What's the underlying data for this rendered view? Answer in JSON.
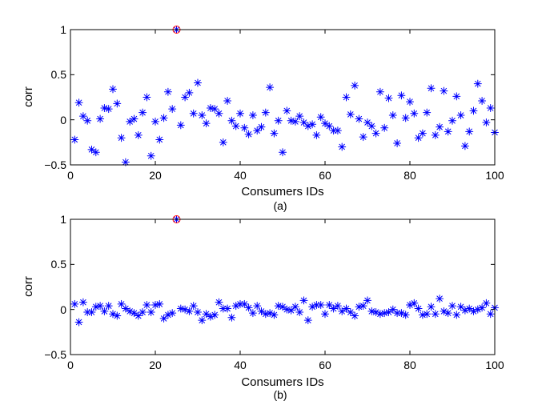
{
  "chart_data": [
    {
      "type": "scatter",
      "caption": "(a)",
      "xlabel": "Consumers IDs",
      "ylabel": "corr",
      "xlim": [
        0,
        100
      ],
      "ylim": [
        -0.5,
        1
      ],
      "xticks": [
        "0",
        "20",
        "40",
        "60",
        "80",
        "100"
      ],
      "yticks": [
        "−0.5",
        "0",
        "0.5",
        "1"
      ],
      "marker_color": "#0000ff",
      "highlight_color": "#ff0000",
      "grid": false,
      "highlight": {
        "x": 25,
        "y": 1
      },
      "x": [
        1,
        2,
        3,
        4,
        5,
        6,
        7,
        8,
        9,
        10,
        11,
        12,
        13,
        14,
        15,
        16,
        17,
        18,
        19,
        20,
        21,
        22,
        23,
        24,
        25,
        26,
        27,
        28,
        29,
        30,
        31,
        32,
        33,
        34,
        35,
        36,
        37,
        38,
        39,
        40,
        41,
        42,
        43,
        44,
        45,
        46,
        47,
        48,
        49,
        50,
        51,
        52,
        53,
        54,
        55,
        56,
        57,
        58,
        59,
        60,
        61,
        62,
        63,
        64,
        65,
        66,
        67,
        68,
        69,
        70,
        71,
        72,
        73,
        74,
        75,
        76,
        77,
        78,
        79,
        80,
        81,
        82,
        83,
        84,
        85,
        86,
        87,
        88,
        89,
        90,
        91,
        92,
        93,
        94,
        95,
        96,
        97,
        98,
        99,
        100
      ],
      "y": [
        -0.22,
        0.19,
        0.04,
        -0.01,
        -0.33,
        -0.36,
        0.01,
        0.13,
        0.12,
        0.34,
        0.18,
        -0.2,
        -0.47,
        -0.02,
        0.01,
        -0.17,
        0.08,
        0.25,
        -0.4,
        -0.02,
        -0.22,
        0.02,
        0.31,
        0.12,
        1.0,
        -0.06,
        0.25,
        0.3,
        0.07,
        0.41,
        0.05,
        -0.04,
        0.13,
        0.12,
        0.07,
        -0.25,
        0.21,
        -0.01,
        -0.07,
        0.07,
        -0.09,
        -0.16,
        0.05,
        -0.12,
        -0.08,
        0.08,
        0.36,
        -0.15,
        -0.01,
        -0.36,
        0.1,
        -0.01,
        -0.02,
        0.04,
        -0.03,
        -0.07,
        -0.05,
        -0.17,
        0.03,
        -0.04,
        -0.07,
        -0.12,
        -0.12,
        -0.3,
        0.25,
        0.06,
        0.38,
        0.01,
        -0.19,
        -0.03,
        -0.07,
        -0.15,
        0.31,
        -0.09,
        0.24,
        0.05,
        -0.26,
        0.27,
        0.02,
        0.2,
        0.07,
        -0.2,
        -0.15,
        0.08,
        0.35,
        -0.17,
        -0.08,
        0.32,
        -0.13,
        -0.01,
        0.26,
        0.05,
        -0.29,
        -0.13,
        0.1,
        0.4,
        0.21,
        -0.03,
        0.13,
        -0.14
      ]
    },
    {
      "type": "scatter",
      "caption": "(b)",
      "xlabel": "Consumers IDs",
      "ylabel": "corr",
      "xlim": [
        0,
        100
      ],
      "ylim": [
        -0.5,
        1
      ],
      "xticks": [
        "0",
        "20",
        "40",
        "60",
        "80",
        "100"
      ],
      "yticks": [
        "−0.5",
        "0",
        "0.5",
        "1"
      ],
      "marker_color": "#0000ff",
      "highlight_color": "#ff0000",
      "grid": false,
      "highlight": {
        "x": 25,
        "y": 1
      },
      "x": [
        1,
        2,
        3,
        4,
        5,
        6,
        7,
        8,
        9,
        10,
        11,
        12,
        13,
        14,
        15,
        16,
        17,
        18,
        19,
        20,
        21,
        22,
        23,
        24,
        25,
        26,
        27,
        28,
        29,
        30,
        31,
        32,
        33,
        34,
        35,
        36,
        37,
        38,
        39,
        40,
        41,
        42,
        43,
        44,
        45,
        46,
        47,
        48,
        49,
        50,
        51,
        52,
        53,
        54,
        55,
        56,
        57,
        58,
        59,
        60,
        61,
        62,
        63,
        64,
        65,
        66,
        67,
        68,
        69,
        70,
        71,
        72,
        73,
        74,
        75,
        76,
        77,
        78,
        79,
        80,
        81,
        82,
        83,
        84,
        85,
        86,
        87,
        88,
        89,
        90,
        91,
        92,
        93,
        94,
        95,
        96,
        97,
        98,
        99,
        100
      ],
      "y": [
        0.06,
        -0.14,
        0.08,
        -0.03,
        -0.03,
        0.03,
        0.04,
        -0.02,
        0.04,
        -0.05,
        -0.07,
        0.06,
        0.01,
        -0.02,
        -0.04,
        -0.07,
        -0.03,
        0.05,
        -0.03,
        0.05,
        0.06,
        -0.1,
        -0.06,
        -0.04,
        1.0,
        0.01,
        0.0,
        -0.02,
        0.04,
        -0.03,
        -0.12,
        -0.05,
        -0.08,
        -0.06,
        0.08,
        0.01,
        0.01,
        -0.09,
        0.04,
        0.06,
        0.06,
        0.02,
        -0.04,
        0.04,
        -0.02,
        -0.05,
        -0.04,
        -0.06,
        0.04,
        0.03,
        0.0,
        -0.01,
        0.03,
        -0.03,
        0.1,
        -0.12,
        0.03,
        0.05,
        0.05,
        -0.05,
        0.05,
        0.01,
        0.04,
        -0.02,
        0.01,
        -0.03,
        -0.07,
        0.03,
        0.04,
        0.1,
        -0.02,
        -0.03,
        -0.05,
        -0.04,
        -0.03,
        0.0,
        -0.04,
        -0.04,
        -0.06,
        0.05,
        0.07,
        0.01,
        -0.06,
        -0.05,
        0.03,
        -0.05,
        0.12,
        -0.02,
        -0.04,
        0.04,
        -0.06,
        0.03,
        -0.01,
        0.01,
        -0.02,
        0.0,
        0.02,
        0.07,
        -0.05,
        0.02
      ]
    }
  ]
}
